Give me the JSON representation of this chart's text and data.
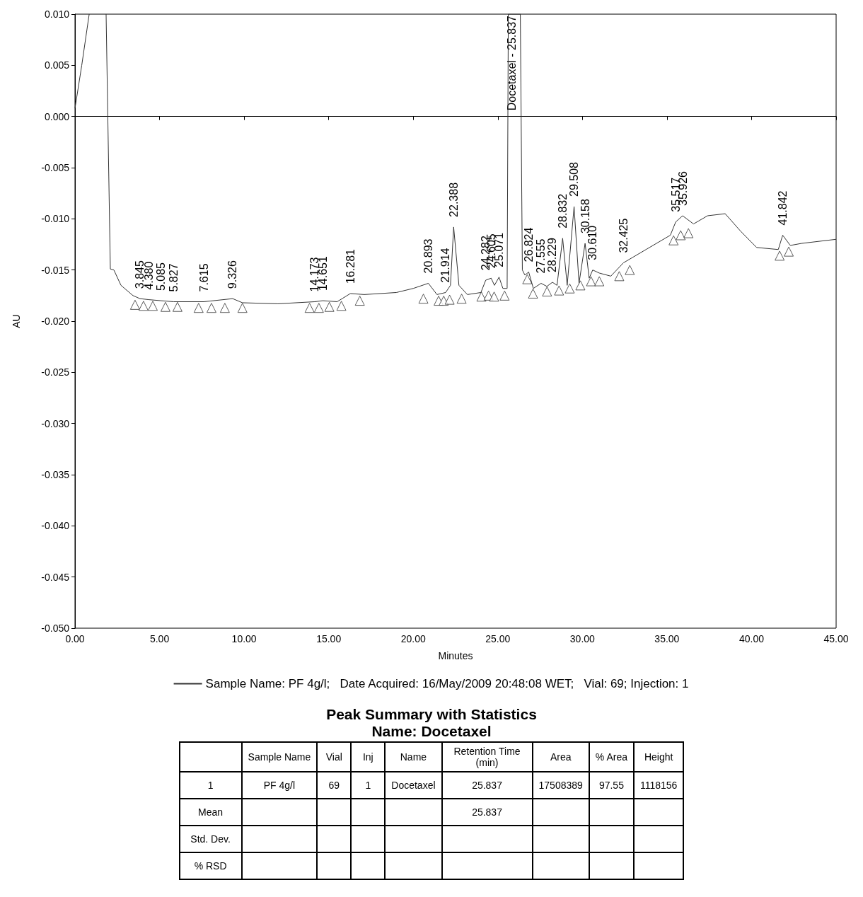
{
  "chart_data": [
    {
      "type": "line",
      "xlabel": "Minutes",
      "ylabel": "AU",
      "xlim": [
        0,
        45
      ],
      "ylim": [
        -0.05,
        0.01
      ],
      "xticks": [
        {
          "value": 0,
          "label": "0.00"
        },
        {
          "value": 5,
          "label": "5.00"
        },
        {
          "value": 10,
          "label": "10.00"
        },
        {
          "value": 15,
          "label": "15.00"
        },
        {
          "value": 20,
          "label": "20.00"
        },
        {
          "value": 25,
          "label": "25.00"
        },
        {
          "value": 30,
          "label": "30.00"
        },
        {
          "value": 35,
          "label": "35.00"
        },
        {
          "value": 40,
          "label": "40.00"
        },
        {
          "value": 45,
          "label": "45.00"
        }
      ],
      "yticks": [
        {
          "value": -0.05,
          "label": "-0.050"
        },
        {
          "value": -0.045,
          "label": "-0.045"
        },
        {
          "value": -0.04,
          "label": "-0.040"
        },
        {
          "value": -0.035,
          "label": "-0.035"
        },
        {
          "value": -0.03,
          "label": "-0.030"
        },
        {
          "value": -0.025,
          "label": "-0.025"
        },
        {
          "value": -0.02,
          "label": "-0.020"
        },
        {
          "value": -0.015,
          "label": "-0.015"
        },
        {
          "value": -0.01,
          "label": "-0.010"
        },
        {
          "value": -0.005,
          "label": "-0.005"
        },
        {
          "value": 0,
          "label": "0.000"
        },
        {
          "value": 0.005,
          "label": "0.005"
        },
        {
          "value": 0.01,
          "label": "0.010"
        }
      ],
      "legend": "bottom",
      "marker": "none",
      "series": [
        {
          "name": "Sample Name: PF 4g/l;   Date Acquired: 16/May/2009 20:48:08 WET;   Vial: 69; Injection: 1",
          "color": "#333333",
          "x": [
            0,
            0.4,
            0.84,
            1.3,
            1.84,
            2.09,
            2.3,
            2.72,
            3.43,
            3.845,
            4.38,
            5.085,
            5.827,
            7.615,
            9.326,
            9.9,
            12,
            14.173,
            14.651,
            15.5,
            16.281,
            17.1,
            19,
            20,
            20.893,
            21.4,
            21.914,
            22.2,
            22.388,
            22.7,
            23.2,
            24,
            24.282,
            24.605,
            24.8,
            25.071,
            25.3,
            25.55,
            25.62,
            25.837,
            26.33,
            26.45,
            26.6,
            26.824,
            27.1,
            27.555,
            27.9,
            28.229,
            28.5,
            28.832,
            29.1,
            29.508,
            29.8,
            30.158,
            30.4,
            30.61,
            31,
            31.68,
            32.425,
            33.76,
            35.2,
            35.517,
            35.926,
            36.57,
            37.4,
            38.44,
            39.35,
            40.3,
            41.58,
            41.842,
            42.29,
            42.96,
            45
          ],
          "values": [
            0.0008,
            0.005,
            0.01,
            null,
            0.01,
            -0.0149,
            -0.015,
            -0.0165,
            -0.0175,
            -0.0178,
            -0.0179,
            -0.018,
            -0.0181,
            -0.0181,
            -0.0178,
            -0.0182,
            -0.0183,
            -0.0181,
            -0.018,
            -0.0181,
            -0.0173,
            -0.0174,
            -0.0172,
            -0.0168,
            -0.0163,
            -0.0174,
            -0.0172,
            -0.0165,
            -0.0108,
            -0.0165,
            -0.0174,
            -0.0172,
            -0.016,
            -0.0158,
            -0.0165,
            -0.0157,
            -0.0168,
            -0.0168,
            0.01,
            0.01,
            0.01,
            -0.015,
            -0.0155,
            -0.0152,
            -0.0168,
            -0.0163,
            -0.0166,
            -0.0162,
            -0.0165,
            -0.0119,
            -0.0165,
            -0.0088,
            -0.0163,
            -0.0124,
            -0.0158,
            -0.015,
            -0.0153,
            -0.0156,
            -0.0143,
            -0.013,
            -0.0116,
            -0.0103,
            -0.0097,
            -0.0105,
            -0.0097,
            -0.0095,
            -0.0112,
            -0.0128,
            -0.013,
            -0.0116,
            -0.0126,
            -0.0124,
            -0.012
          ]
        },
        {
          "type": "scatter",
          "marker": "triangle",
          "color": "#333333",
          "x": [
            3.55,
            4.05,
            4.6,
            5.35,
            6.06,
            7.31,
            8.07,
            8.86,
            9.9,
            13.87,
            14.42,
            15.04,
            15.75,
            16.84,
            20.6,
            21.5,
            21.8,
            22.15,
            22.86,
            24.03,
            24.45,
            24.78,
            25.4,
            26.74,
            27.08,
            27.91,
            28.62,
            29.25,
            29.88,
            30.51,
            31,
            32.18,
            32.8,
            35.39,
            35.81,
            36.27,
            41.66,
            42.2
          ],
          "values": [
            -0.0184,
            -0.0185,
            -0.0185,
            -0.0186,
            -0.0186,
            -0.0187,
            -0.0187,
            -0.0187,
            -0.0187,
            -0.0187,
            -0.0187,
            -0.0186,
            -0.0185,
            -0.018,
            -0.0178,
            -0.018,
            -0.018,
            -0.0179,
            -0.0178,
            -0.0176,
            -0.0175,
            -0.0176,
            -0.0175,
            -0.0159,
            -0.0173,
            -0.0171,
            -0.017,
            -0.0168,
            -0.0165,
            -0.0161,
            -0.0161,
            -0.0156,
            -0.015,
            -0.0121,
            -0.0116,
            -0.0114,
            -0.0136,
            -0.0132
          ]
        }
      ],
      "annotations": [
        {
          "text": "3.845",
          "x": 3.845,
          "y": -0.0178
        },
        {
          "text": "4.380",
          "x": 4.38,
          "y": -0.0179
        },
        {
          "text": "5.085",
          "x": 5.085,
          "y": -0.018
        },
        {
          "text": "5.827",
          "x": 5.827,
          "y": -0.0181
        },
        {
          "text": "7.615",
          "x": 7.615,
          "y": -0.0181
        },
        {
          "text": "9.326",
          "x": 9.326,
          "y": -0.0178
        },
        {
          "text": "14.173",
          "x": 14.173,
          "y": -0.0181
        },
        {
          "text": "14.651",
          "x": 14.651,
          "y": -0.018
        },
        {
          "text": "16.281",
          "x": 16.281,
          "y": -0.0173
        },
        {
          "text": "20.893",
          "x": 20.893,
          "y": -0.0163
        },
        {
          "text": "21.914",
          "x": 21.914,
          "y": -0.0172
        },
        {
          "text": "22.388",
          "x": 22.388,
          "y": -0.0108
        },
        {
          "text": "24.282",
          "x": 24.282,
          "y": -0.016
        },
        {
          "text": "24.605",
          "x": 24.605,
          "y": -0.0158
        },
        {
          "text": "25.071",
          "x": 25.071,
          "y": -0.0157
        },
        {
          "text": "Docetaxel - 25.837",
          "x": 25.837,
          "y": 0.01
        },
        {
          "text": "26.824",
          "x": 26.824,
          "y": -0.0152
        },
        {
          "text": "27.555",
          "x": 27.555,
          "y": -0.0163
        },
        {
          "text": "28.229",
          "x": 28.229,
          "y": -0.0162
        },
        {
          "text": "28.832",
          "x": 28.832,
          "y": -0.0119
        },
        {
          "text": "29.508",
          "x": 29.508,
          "y": -0.0088
        },
        {
          "text": "30.158",
          "x": 30.158,
          "y": -0.0124
        },
        {
          "text": "30.610",
          "x": 30.61,
          "y": -0.015
        },
        {
          "text": "32.425",
          "x": 32.425,
          "y": -0.0143
        },
        {
          "text": "35.517",
          "x": 35.517,
          "y": -0.0103
        },
        {
          "text": "35.926",
          "x": 35.926,
          "y": -0.0097
        },
        {
          "text": "41.842",
          "x": 41.842,
          "y": -0.0116
        }
      ]
    },
    {
      "type": "other",
      "title": "Peak Summary with Statistics",
      "subtitle": "Name: Docetaxel",
      "categories": [
        null,
        "Sample Name",
        "Vial",
        "Inj",
        "Name",
        "Retention Time (min)",
        "Area",
        "% Area",
        "Height"
      ],
      "cells": [
        [
          "1",
          "PF 4g/l",
          "69",
          "1",
          "Docetaxel",
          "25.837",
          "17508389",
          "97.55",
          "1118156"
        ],
        [
          "Mean",
          null,
          null,
          null,
          null,
          "25.837",
          null,
          null,
          null
        ],
        [
          "Std. Dev.",
          null,
          null,
          null,
          null,
          null,
          null,
          null,
          null
        ],
        [
          "% RSD",
          null,
          null,
          null,
          null,
          null,
          null,
          null,
          null
        ]
      ]
    }
  ]
}
